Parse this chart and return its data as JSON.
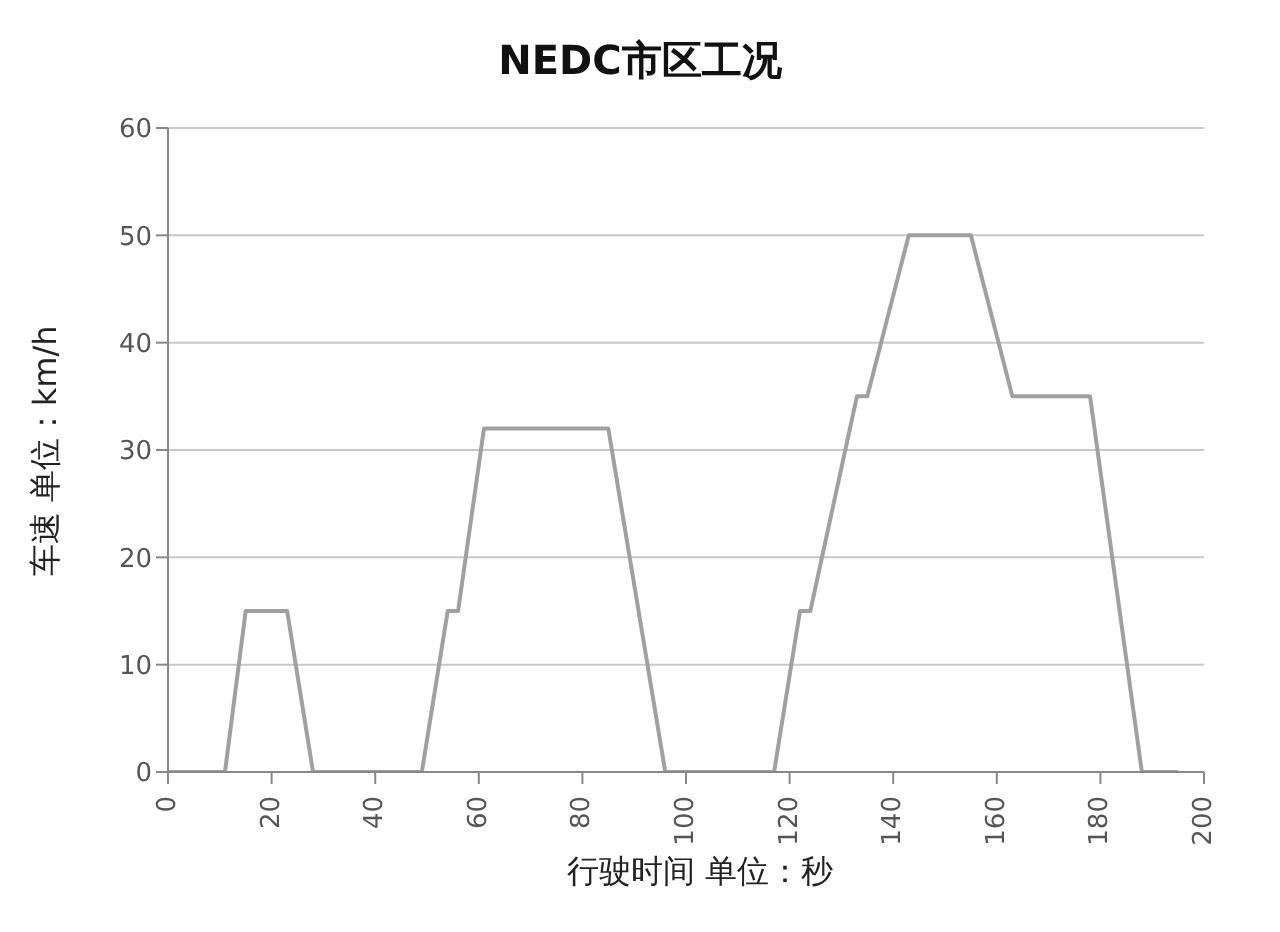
{
  "chart_data": {
    "type": "line",
    "title": "NEDC市区工况",
    "xlabel": "行驶时间  单位：秒",
    "ylabel": "车速  单位：km/h",
    "x": [
      0,
      11,
      15,
      23,
      28,
      49,
      54,
      56,
      61,
      85,
      96,
      117,
      122,
      124,
      133,
      135,
      143,
      155,
      163,
      176,
      178,
      188,
      195
    ],
    "series": [
      {
        "color": "#a0a0a0",
        "values": [
          0,
          0,
          15,
          15,
          0,
          0,
          15,
          15,
          32,
          32,
          0,
          0,
          15,
          15,
          35,
          35,
          50,
          50,
          35,
          35,
          35,
          0,
          0
        ]
      }
    ],
    "xlim": [
      0,
      200
    ],
    "xticks": [
      0,
      20,
      40,
      60,
      80,
      100,
      120,
      140,
      160,
      180,
      200
    ],
    "ylim": [
      0,
      60
    ],
    "yticks": [
      0,
      10,
      20,
      30,
      40,
      50,
      60
    ],
    "grid": "y",
    "marker": "none",
    "line_style": "solid"
  }
}
